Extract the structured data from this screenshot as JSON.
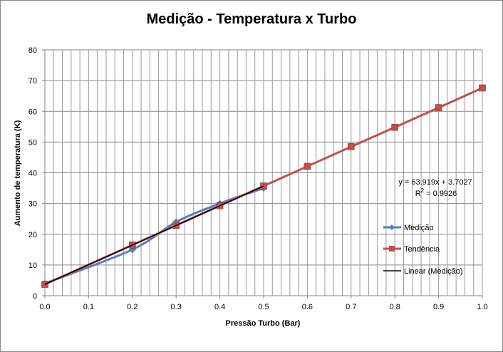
{
  "chart_data": {
    "type": "line",
    "title": "Medição - Temperatura x Turbo",
    "xlabel": "Pressão Turbo (Bar)",
    "ylabel": "Aumento de temperatura (K)",
    "xlim": [
      0,
      1
    ],
    "ylim": [
      0,
      80
    ],
    "xticks": [
      "0.0",
      "0.1",
      "0.2",
      "0.3",
      "0.4",
      "0.5",
      "0.6",
      "0.7",
      "0.8",
      "0.9",
      "1.0"
    ],
    "yticks": [
      "0",
      "10",
      "20",
      "30",
      "40",
      "50",
      "60",
      "70",
      "80"
    ],
    "grid": true,
    "legend_position": "right",
    "series": [
      {
        "name": "Medição",
        "color": "#4f81bd",
        "marker": "diamond",
        "x": [
          0.0,
          0.2,
          0.3,
          0.4,
          0.5
        ],
        "y": [
          4,
          15,
          24,
          30,
          35
        ]
      },
      {
        "name": "Tendência",
        "color": "#c0504d",
        "marker": "square",
        "x": [
          0.0,
          0.2,
          0.3,
          0.4,
          0.5,
          0.6,
          0.7,
          0.8,
          0.9,
          1.0
        ],
        "y": [
          3.7,
          16.5,
          22.9,
          29.3,
          35.7,
          42.1,
          48.5,
          54.8,
          61.2,
          67.6
        ]
      },
      {
        "name": "Linear (Medição)",
        "color": "#000000",
        "marker": "none",
        "x": [
          0.0,
          0.5
        ],
        "y": [
          3.7027,
          35.662
        ]
      }
    ],
    "trendline_equation": "y = 63.919x + 3.7027",
    "r_squared_label": "R",
    "r_squared_exp": "2",
    "r_squared_value": " = 0.9926"
  }
}
